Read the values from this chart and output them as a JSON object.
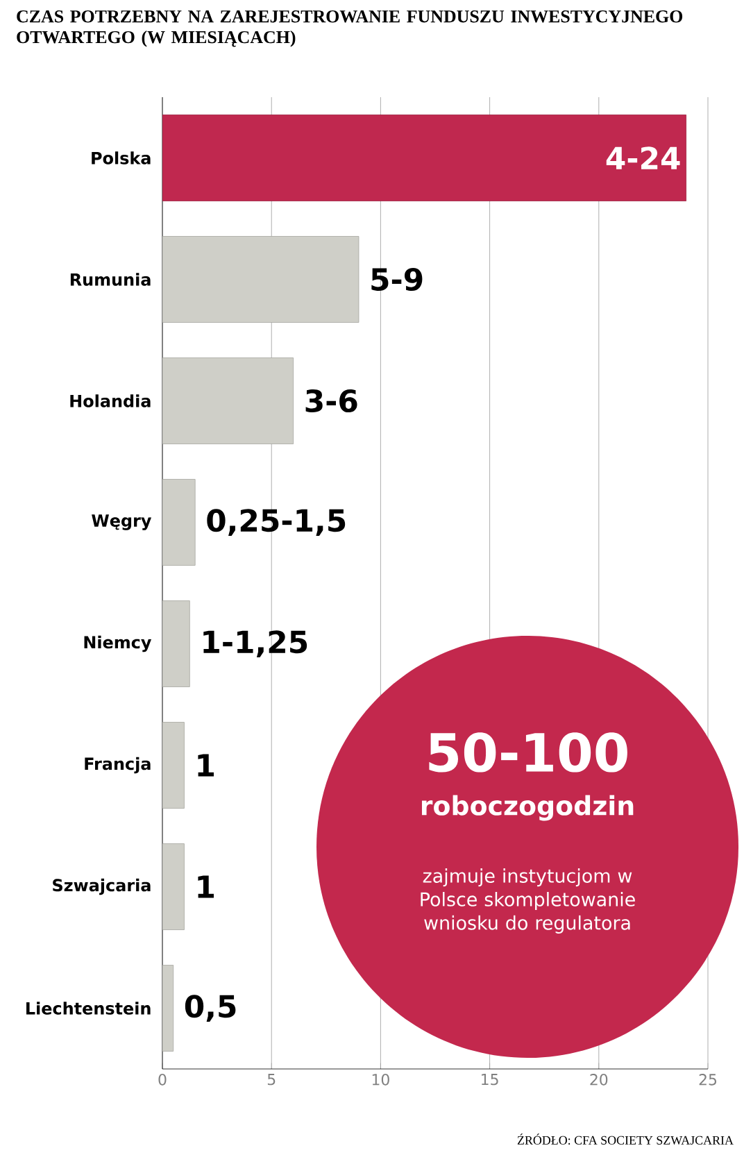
{
  "chart_data": {
    "type": "bar",
    "orientation": "horizontal",
    "title": "CZAS POTRZEBNY NA ZAREJESTROWANIE FUNDUSZU INWESTYCYJNEGO OTWARTEGO (W MIESIĄCACH)",
    "categories": [
      "Polska",
      "Rumunia",
      "Holandia",
      "Węgry",
      "Niemcy",
      "Francja",
      "Szwajcaria",
      "Liechtenstein"
    ],
    "values": [
      24,
      9,
      6,
      1.5,
      1.25,
      1,
      1,
      0.5
    ],
    "value_labels": [
      "4-24",
      "5-9",
      "3-6",
      "0,25-1,5",
      "1-1,25",
      "1",
      "1",
      "0,5"
    ],
    "colors": [
      "#c0284f",
      "#cfcfc8",
      "#cfcfc8",
      "#cfcfc8",
      "#cfcfc8",
      "#cfcfc8",
      "#cfcfc8",
      "#cfcfc8"
    ],
    "xlim": [
      0,
      25
    ],
    "xticks": [
      0,
      5,
      10,
      15,
      20,
      25
    ],
    "grid": "x",
    "annotations": [
      "50-100",
      "roboczogodzin",
      "zajmuje instytucjom w Polsce skompletowanie wniosku do regulatora",
      "ŹRÓDŁO: CFA SOCIETY SZWAJCARIA"
    ]
  }
}
